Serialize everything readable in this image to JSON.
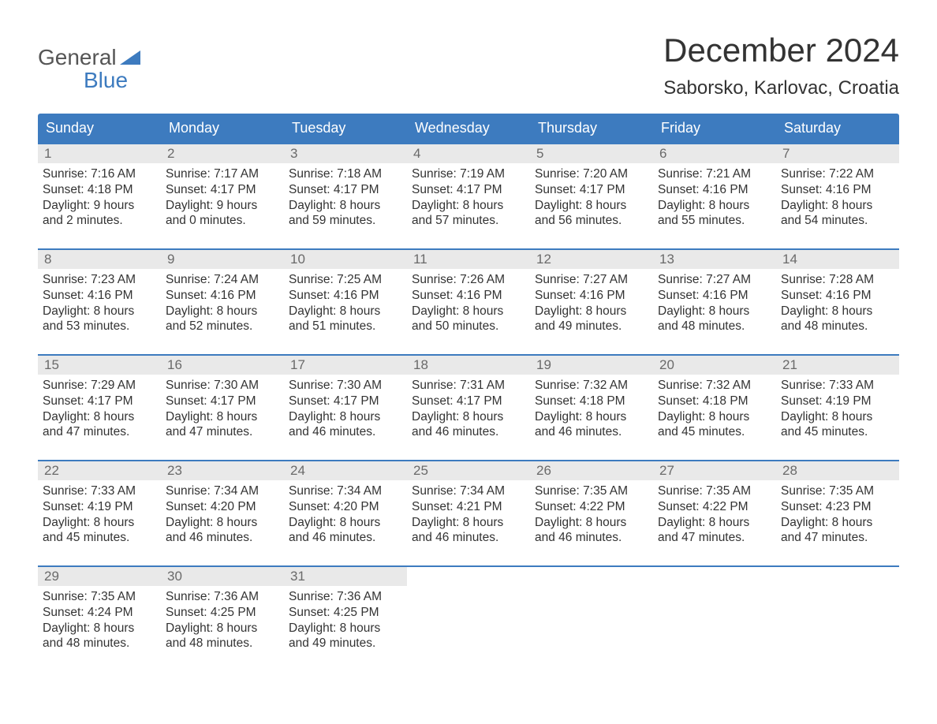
{
  "brand": {
    "word1": "General",
    "word2": "Blue"
  },
  "colors": {
    "accent": "#3d7bbf",
    "daynum_bg": "#e9e9e9",
    "daynum_text": "#6a6a6a",
    "text": "#333333",
    "logo_gray": "#555555",
    "background": "#ffffff"
  },
  "month_title": "December 2024",
  "location": "Saborsko, Karlovac, Croatia",
  "day_headers": [
    "Sunday",
    "Monday",
    "Tuesday",
    "Wednesday",
    "Thursday",
    "Friday",
    "Saturday"
  ],
  "weeks": [
    [
      {
        "num": "1",
        "sunrise": "Sunrise: 7:16 AM",
        "sunset": "Sunset: 4:18 PM",
        "dl1": "Daylight: 9 hours",
        "dl2": "and 2 minutes."
      },
      {
        "num": "2",
        "sunrise": "Sunrise: 7:17 AM",
        "sunset": "Sunset: 4:17 PM",
        "dl1": "Daylight: 9 hours",
        "dl2": "and 0 minutes."
      },
      {
        "num": "3",
        "sunrise": "Sunrise: 7:18 AM",
        "sunset": "Sunset: 4:17 PM",
        "dl1": "Daylight: 8 hours",
        "dl2": "and 59 minutes."
      },
      {
        "num": "4",
        "sunrise": "Sunrise: 7:19 AM",
        "sunset": "Sunset: 4:17 PM",
        "dl1": "Daylight: 8 hours",
        "dl2": "and 57 minutes."
      },
      {
        "num": "5",
        "sunrise": "Sunrise: 7:20 AM",
        "sunset": "Sunset: 4:17 PM",
        "dl1": "Daylight: 8 hours",
        "dl2": "and 56 minutes."
      },
      {
        "num": "6",
        "sunrise": "Sunrise: 7:21 AM",
        "sunset": "Sunset: 4:16 PM",
        "dl1": "Daylight: 8 hours",
        "dl2": "and 55 minutes."
      },
      {
        "num": "7",
        "sunrise": "Sunrise: 7:22 AM",
        "sunset": "Sunset: 4:16 PM",
        "dl1": "Daylight: 8 hours",
        "dl2": "and 54 minutes."
      }
    ],
    [
      {
        "num": "8",
        "sunrise": "Sunrise: 7:23 AM",
        "sunset": "Sunset: 4:16 PM",
        "dl1": "Daylight: 8 hours",
        "dl2": "and 53 minutes."
      },
      {
        "num": "9",
        "sunrise": "Sunrise: 7:24 AM",
        "sunset": "Sunset: 4:16 PM",
        "dl1": "Daylight: 8 hours",
        "dl2": "and 52 minutes."
      },
      {
        "num": "10",
        "sunrise": "Sunrise: 7:25 AM",
        "sunset": "Sunset: 4:16 PM",
        "dl1": "Daylight: 8 hours",
        "dl2": "and 51 minutes."
      },
      {
        "num": "11",
        "sunrise": "Sunrise: 7:26 AM",
        "sunset": "Sunset: 4:16 PM",
        "dl1": "Daylight: 8 hours",
        "dl2": "and 50 minutes."
      },
      {
        "num": "12",
        "sunrise": "Sunrise: 7:27 AM",
        "sunset": "Sunset: 4:16 PM",
        "dl1": "Daylight: 8 hours",
        "dl2": "and 49 minutes."
      },
      {
        "num": "13",
        "sunrise": "Sunrise: 7:27 AM",
        "sunset": "Sunset: 4:16 PM",
        "dl1": "Daylight: 8 hours",
        "dl2": "and 48 minutes."
      },
      {
        "num": "14",
        "sunrise": "Sunrise: 7:28 AM",
        "sunset": "Sunset: 4:16 PM",
        "dl1": "Daylight: 8 hours",
        "dl2": "and 48 minutes."
      }
    ],
    [
      {
        "num": "15",
        "sunrise": "Sunrise: 7:29 AM",
        "sunset": "Sunset: 4:17 PM",
        "dl1": "Daylight: 8 hours",
        "dl2": "and 47 minutes."
      },
      {
        "num": "16",
        "sunrise": "Sunrise: 7:30 AM",
        "sunset": "Sunset: 4:17 PM",
        "dl1": "Daylight: 8 hours",
        "dl2": "and 47 minutes."
      },
      {
        "num": "17",
        "sunrise": "Sunrise: 7:30 AM",
        "sunset": "Sunset: 4:17 PM",
        "dl1": "Daylight: 8 hours",
        "dl2": "and 46 minutes."
      },
      {
        "num": "18",
        "sunrise": "Sunrise: 7:31 AM",
        "sunset": "Sunset: 4:17 PM",
        "dl1": "Daylight: 8 hours",
        "dl2": "and 46 minutes."
      },
      {
        "num": "19",
        "sunrise": "Sunrise: 7:32 AM",
        "sunset": "Sunset: 4:18 PM",
        "dl1": "Daylight: 8 hours",
        "dl2": "and 46 minutes."
      },
      {
        "num": "20",
        "sunrise": "Sunrise: 7:32 AM",
        "sunset": "Sunset: 4:18 PM",
        "dl1": "Daylight: 8 hours",
        "dl2": "and 45 minutes."
      },
      {
        "num": "21",
        "sunrise": "Sunrise: 7:33 AM",
        "sunset": "Sunset: 4:19 PM",
        "dl1": "Daylight: 8 hours",
        "dl2": "and 45 minutes."
      }
    ],
    [
      {
        "num": "22",
        "sunrise": "Sunrise: 7:33 AM",
        "sunset": "Sunset: 4:19 PM",
        "dl1": "Daylight: 8 hours",
        "dl2": "and 45 minutes."
      },
      {
        "num": "23",
        "sunrise": "Sunrise: 7:34 AM",
        "sunset": "Sunset: 4:20 PM",
        "dl1": "Daylight: 8 hours",
        "dl2": "and 46 minutes."
      },
      {
        "num": "24",
        "sunrise": "Sunrise: 7:34 AM",
        "sunset": "Sunset: 4:20 PM",
        "dl1": "Daylight: 8 hours",
        "dl2": "and 46 minutes."
      },
      {
        "num": "25",
        "sunrise": "Sunrise: 7:34 AM",
        "sunset": "Sunset: 4:21 PM",
        "dl1": "Daylight: 8 hours",
        "dl2": "and 46 minutes."
      },
      {
        "num": "26",
        "sunrise": "Sunrise: 7:35 AM",
        "sunset": "Sunset: 4:22 PM",
        "dl1": "Daylight: 8 hours",
        "dl2": "and 46 minutes."
      },
      {
        "num": "27",
        "sunrise": "Sunrise: 7:35 AM",
        "sunset": "Sunset: 4:22 PM",
        "dl1": "Daylight: 8 hours",
        "dl2": "and 47 minutes."
      },
      {
        "num": "28",
        "sunrise": "Sunrise: 7:35 AM",
        "sunset": "Sunset: 4:23 PM",
        "dl1": "Daylight: 8 hours",
        "dl2": "and 47 minutes."
      }
    ],
    [
      {
        "num": "29",
        "sunrise": "Sunrise: 7:35 AM",
        "sunset": "Sunset: 4:24 PM",
        "dl1": "Daylight: 8 hours",
        "dl2": "and 48 minutes."
      },
      {
        "num": "30",
        "sunrise": "Sunrise: 7:36 AM",
        "sunset": "Sunset: 4:25 PM",
        "dl1": "Daylight: 8 hours",
        "dl2": "and 48 minutes."
      },
      {
        "num": "31",
        "sunrise": "Sunrise: 7:36 AM",
        "sunset": "Sunset: 4:25 PM",
        "dl1": "Daylight: 8 hours",
        "dl2": "and 49 minutes."
      },
      null,
      null,
      null,
      null
    ]
  ]
}
